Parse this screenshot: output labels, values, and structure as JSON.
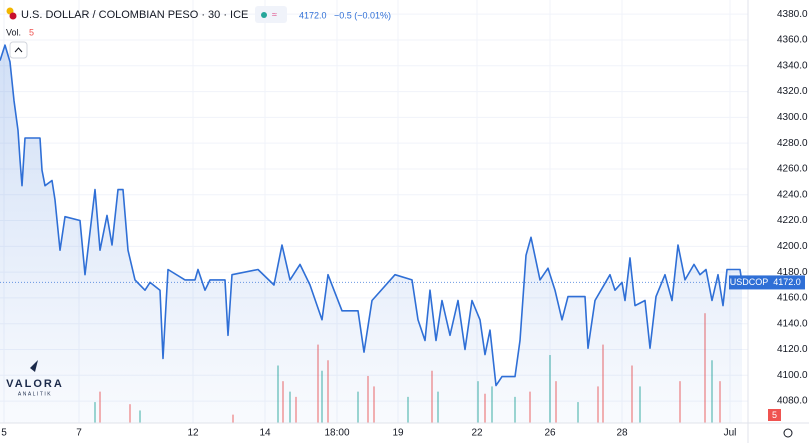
{
  "chart_data": {
    "type": "line",
    "title": "U.S. DOLLAR / COLOMBIAN PESO · 30 · ICE",
    "symbol": "USDCOP",
    "last_price": {
      "value": 4172,
      "label": "4172.0"
    },
    "change": "−0.5 (−0.01%)",
    "volume_label": "Vol.",
    "volume_last": 5,
    "watermark": "VALORA",
    "watermark_sub": "ANALITIK",
    "color": "#2f6fd6",
    "xlim": [
      0,
      149.6
    ],
    "ylim": [
      4063,
      4391
    ],
    "yticks": [
      {
        "value": 4080,
        "label": "4080.0"
      },
      {
        "value": 4100,
        "label": "4100.0"
      },
      {
        "value": 4120,
        "label": "4120.0"
      },
      {
        "value": 4140,
        "label": "4140.0"
      },
      {
        "value": 4160,
        "label": "4160.0"
      },
      {
        "value": 4180,
        "label": "4180.0"
      },
      {
        "value": 4200,
        "label": "4200.0"
      },
      {
        "value": 4220,
        "label": "4220.0"
      },
      {
        "value": 4240,
        "label": "4240.0"
      },
      {
        "value": 4260,
        "label": "4260.0"
      },
      {
        "value": 4280,
        "label": "4280.0"
      },
      {
        "value": 4300,
        "label": "4300.0"
      },
      {
        "value": 4320,
        "label": "4320.0"
      },
      {
        "value": 4340,
        "label": "4340.0"
      },
      {
        "value": 4360,
        "label": "4360.0"
      },
      {
        "value": 4380,
        "label": "4380.0"
      }
    ],
    "xticks": [
      {
        "value": 0.8,
        "label": "5"
      },
      {
        "value": 15.8,
        "label": "7"
      },
      {
        "value": 38.6,
        "label": "12"
      },
      {
        "value": 53,
        "label": "14"
      },
      {
        "value": 67.4,
        "label": "18:00"
      },
      {
        "value": 79.6,
        "label": "19"
      },
      {
        "value": 95.4,
        "label": "22"
      },
      {
        "value": 110,
        "label": "26"
      },
      {
        "value": 124.4,
        "label": "28"
      },
      {
        "value": 146,
        "label": "Jul"
      }
    ],
    "grid": true,
    "x": [
      0,
      1,
      2,
      2.8,
      3.6,
      4,
      4.4,
      5,
      8,
      8.4,
      9,
      10.4,
      11,
      12,
      13,
      16,
      17,
      19,
      20,
      21.4,
      22.4,
      23.6,
      24.6,
      25.6,
      27,
      29,
      30,
      32,
      32.6,
      33.6,
      37,
      39,
      39.6,
      41,
      42,
      45,
      45.6,
      46.4,
      51.6,
      54.8,
      56.4,
      58,
      60,
      62,
      64.4,
      65.6,
      68.4,
      71.6,
      72.8,
      74.4,
      79,
      82.4,
      83.6,
      85,
      86,
      87.2,
      88.4,
      90,
      91.6,
      93,
      94.4,
      96,
      97,
      98,
      99.2,
      100.4,
      103,
      104,
      105.2,
      106.2,
      108,
      109.6,
      111,
      112.4,
      113.6,
      117,
      117.6,
      119,
      122,
      123,
      124.4,
      125,
      126,
      127,
      129,
      130,
      131.2,
      133,
      134.4,
      135.6,
      137,
      138.8,
      140,
      141.2,
      142.4,
      143.6,
      144.6,
      145.4,
      148,
      148.4
    ],
    "values": [
      4344,
      4356,
      4343,
      4313,
      4290,
      4267,
      4247,
      4284,
      4284,
      4259,
      4247,
      4251,
      4236,
      4197,
      4223,
      4220,
      4178,
      4244,
      4197,
      4224,
      4201,
      4244,
      4244,
      4197,
      4174,
      4166,
      4172,
      4166,
      4113,
      4182,
      4174,
      4174,
      4182,
      4166,
      4174,
      4174,
      4131,
      4178,
      4182,
      4170,
      4201,
      4174,
      4186,
      4170,
      4143,
      4178,
      4150,
      4150,
      4118,
      4158,
      4178,
      4174,
      4143,
      4127,
      4166,
      4127,
      4158,
      4131,
      4158,
      4120,
      4158,
      4143,
      4116,
      4135,
      4092,
      4099,
      4099,
      4127,
      4193,
      4207,
      4174,
      4183,
      4166,
      4143,
      4161,
      4161,
      4121,
      4158,
      4178,
      4166,
      4172,
      4158,
      4191,
      4154,
      4158,
      4121,
      4161,
      4178,
      4158,
      4201,
      4174,
      4186,
      4178,
      4182,
      4158,
      4178,
      4154,
      4182,
      4182,
      4172
    ],
    "volume": {
      "x": [
        19,
        20,
        26,
        28,
        46.6,
        55.6,
        56.6,
        58,
        59.2,
        63.6,
        64.4,
        65.6,
        71.6,
        73.6,
        74.8,
        81.6,
        86.4,
        87.6,
        95.6,
        97,
        98.4,
        103,
        106,
        110,
        111.2,
        115.6,
        119.6,
        120.6,
        126.4,
        128,
        136,
        141,
        142.4,
        144
      ],
      "values": [
        20,
        30,
        18,
        12,
        8,
        55,
        40,
        30,
        25,
        75,
        50,
        60,
        30,
        45,
        35,
        25,
        50,
        30,
        40,
        28,
        35,
        25,
        30,
        65,
        40,
        20,
        35,
        75,
        55,
        35,
        40,
        105,
        60,
        40
      ],
      "up": [
        true,
        false,
        false,
        true,
        false,
        true,
        false,
        true,
        false,
        false,
        true,
        false,
        true,
        false,
        false,
        true,
        false,
        true,
        true,
        false,
        true,
        true,
        false,
        true,
        false,
        true,
        false,
        false,
        false,
        true,
        false,
        false,
        true,
        false
      ],
      "vlim": [
        0,
        110
      ],
      "up_color": "#26a69a",
      "down_color": "#ef5350"
    }
  }
}
